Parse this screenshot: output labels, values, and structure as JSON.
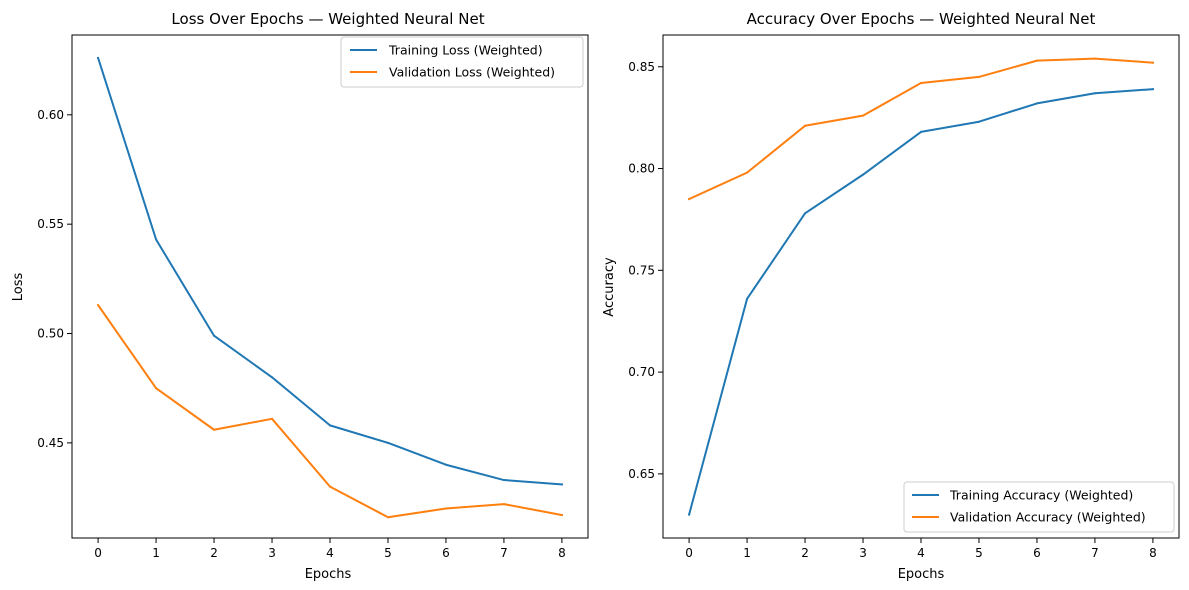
{
  "chart_data": [
    {
      "type": "line",
      "title": "Loss Over Epochs — Weighted Neural Net",
      "xlabel": "Epochs",
      "ylabel": "Loss",
      "x": [
        0,
        1,
        2,
        3,
        4,
        5,
        6,
        7,
        8
      ],
      "xlim": [
        -0.45,
        8.45
      ],
      "ylim": [
        0.4065,
        0.6365
      ],
      "xticks": [
        0,
        1,
        2,
        3,
        4,
        5,
        6,
        7,
        8
      ],
      "yticks": [
        0.45,
        0.5,
        0.55,
        0.6
      ],
      "ytick_labels": [
        "0.45",
        "0.50",
        "0.55",
        "0.60"
      ],
      "grid": false,
      "legend_position": "top-right",
      "series": [
        {
          "name": "Training Loss (Weighted)",
          "color": "#1f77b4",
          "values": [
            0.626,
            0.543,
            0.499,
            0.48,
            0.458,
            0.45,
            0.44,
            0.433,
            0.431
          ]
        },
        {
          "name": "Validation Loss (Weighted)",
          "color": "#ff7f0e",
          "values": [
            0.513,
            0.475,
            0.456,
            0.461,
            0.43,
            0.416,
            0.42,
            0.422,
            0.417
          ]
        }
      ]
    },
    {
      "type": "line",
      "title": "Accuracy Over Epochs — Weighted Neural Net",
      "xlabel": "Epochs",
      "ylabel": "Accuracy",
      "x": [
        0,
        1,
        2,
        3,
        4,
        5,
        6,
        7,
        8
      ],
      "xlim": [
        -0.45,
        8.45
      ],
      "ylim": [
        0.6185,
        0.8656
      ],
      "xticks": [
        0,
        1,
        2,
        3,
        4,
        5,
        6,
        7,
        8
      ],
      "yticks": [
        0.65,
        0.7,
        0.75,
        0.8,
        0.85
      ],
      "ytick_labels": [
        "0.65",
        "0.70",
        "0.75",
        "0.80",
        "0.85"
      ],
      "grid": false,
      "legend_position": "bottom-right",
      "series": [
        {
          "name": "Training Accuracy (Weighted)",
          "color": "#1f77b4",
          "values": [
            0.63,
            0.736,
            0.778,
            0.797,
            0.818,
            0.823,
            0.832,
            0.837,
            0.839
          ]
        },
        {
          "name": "Validation Accuracy (Weighted)",
          "color": "#ff7f0e",
          "values": [
            0.785,
            0.798,
            0.821,
            0.826,
            0.842,
            0.845,
            0.853,
            0.854,
            0.852
          ]
        }
      ]
    }
  ]
}
